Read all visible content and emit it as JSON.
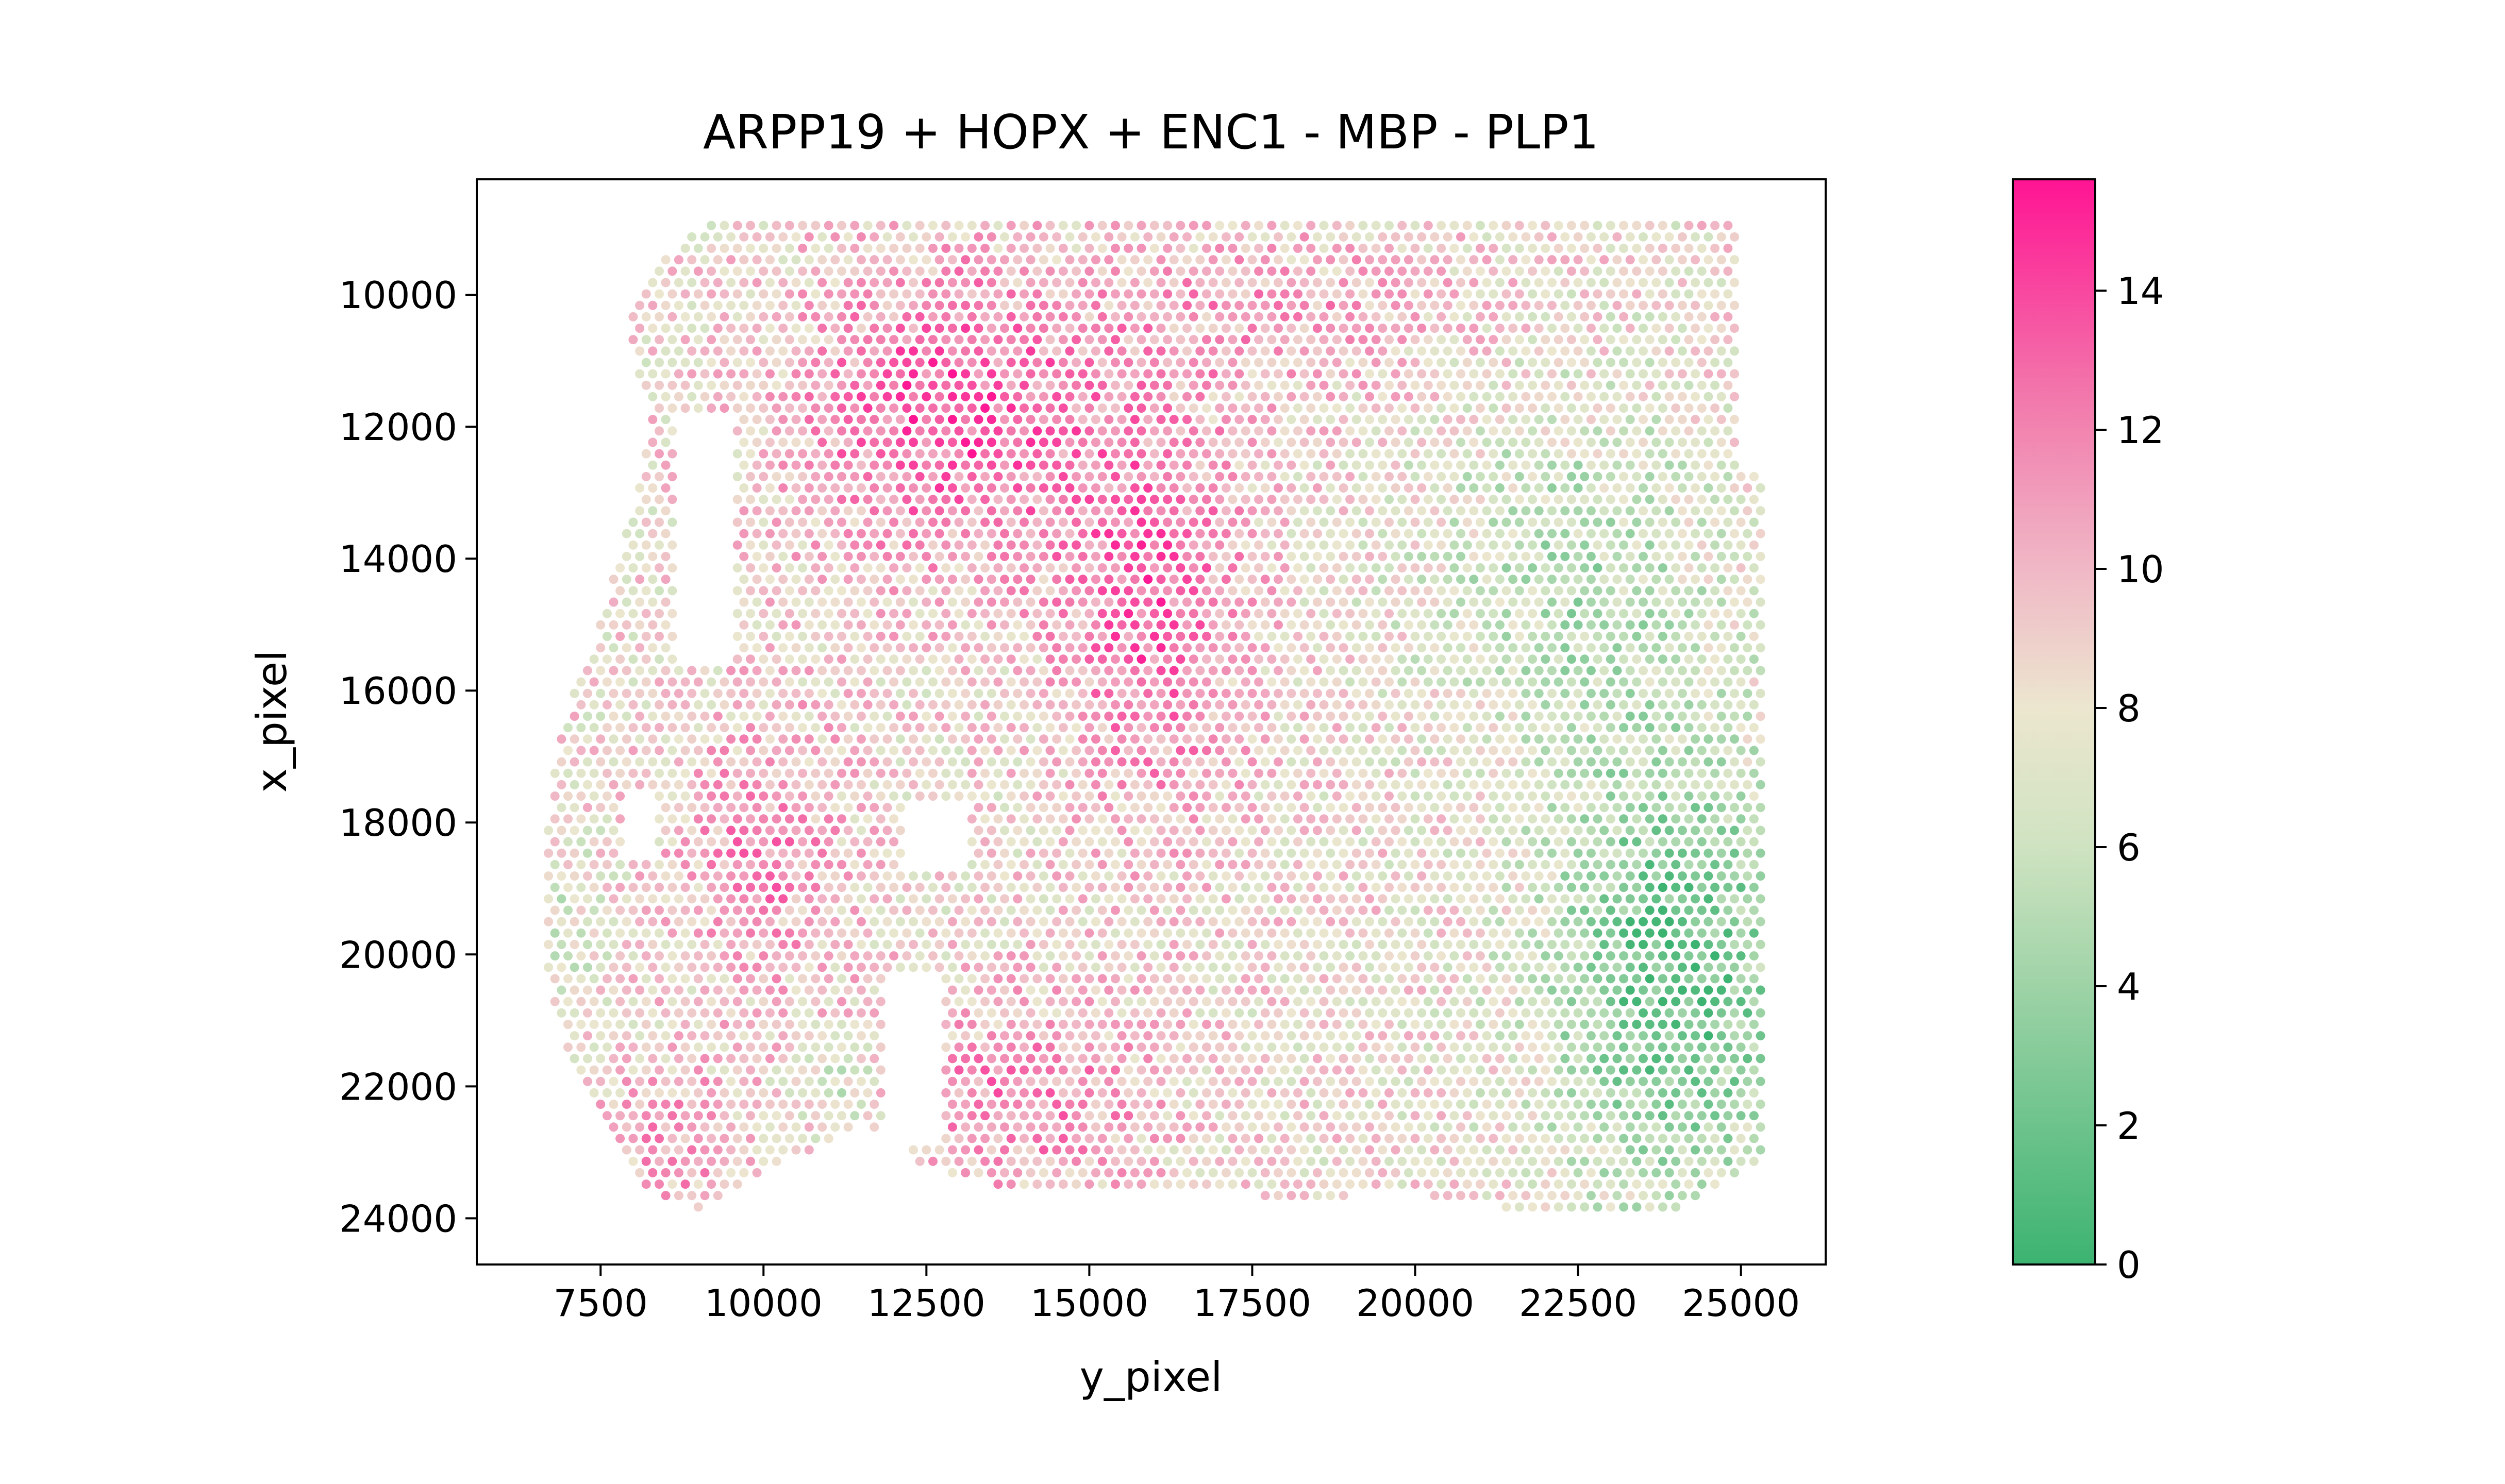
{
  "chart_data": {
    "type": "scatter",
    "title": "ARPP19 + HOPX + ENC1 - MBP - PLP1",
    "xlabel": "y_pixel",
    "ylabel": "x_pixel",
    "xlim": [
      5600,
      26300
    ],
    "ylim": [
      24700,
      8250
    ],
    "y_inverted": true,
    "x_ticks": [
      7500,
      10000,
      12500,
      15000,
      17500,
      20000,
      22500,
      25000
    ],
    "x_tick_labels": [
      "7500",
      "10000",
      "12500",
      "15000",
      "17500",
      "20000",
      "22500",
      "25000"
    ],
    "y_ticks": [
      10000,
      12000,
      14000,
      16000,
      18000,
      20000,
      22000,
      24000
    ],
    "y_tick_labels": [
      "10000",
      "12000",
      "14000",
      "16000",
      "18000",
      "20000",
      "22000",
      "24000"
    ],
    "grid": false,
    "spot_grid": {
      "x_start": 6600,
      "x_end": 25400,
      "x_step": 200,
      "y_start": 8950,
      "y_end": 23950,
      "y_step": 173,
      "stagger": true
    },
    "colorbar": {
      "min": 0,
      "max": 15.6,
      "ticks": [
        0,
        2,
        4,
        6,
        8,
        10,
        12,
        14
      ],
      "tick_labels": [
        "0",
        "2",
        "4",
        "6",
        "8",
        "10",
        "12",
        "14"
      ],
      "colormap": [
        {
          "value": 0,
          "color": "#3cb371"
        },
        {
          "value": 6,
          "color": "#cfe3c1"
        },
        {
          "value": 8,
          "color": "#ece6cf"
        },
        {
          "value": 10,
          "color": "#f0b8c6"
        },
        {
          "value": 12.5,
          "color": "#f277ab"
        },
        {
          "value": 15.6,
          "color": "#ff1493"
        }
      ]
    }
  }
}
